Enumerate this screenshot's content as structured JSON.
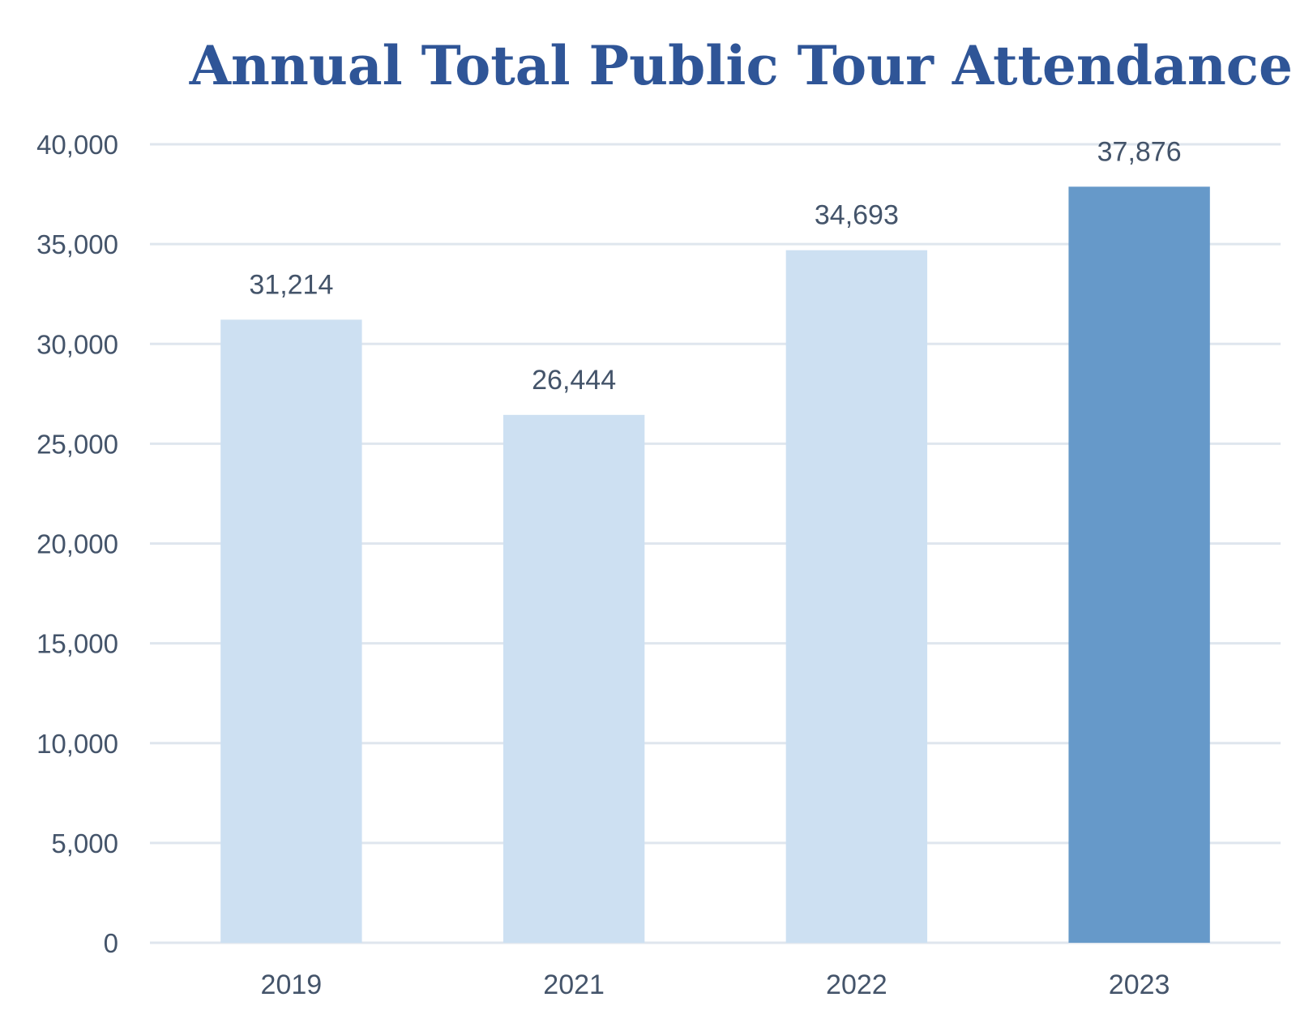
{
  "chart_data": {
    "type": "bar",
    "title": "Annual Total Public Tour Attendance",
    "categories": [
      "2019",
      "2021",
      "2022",
      "2023"
    ],
    "values": [
      31214,
      26444,
      34693,
      37876
    ],
    "data_labels": [
      "31,214",
      "26,444",
      "34,693",
      "37,876"
    ],
    "xlabel": "",
    "ylabel": "",
    "ylim": [
      0,
      40000
    ],
    "yticks": [
      0,
      5000,
      10000,
      15000,
      20000,
      25000,
      30000,
      35000,
      40000
    ],
    "ytick_labels": [
      "0",
      "5,000",
      "10,000",
      "15,000",
      "20,000",
      "25,000",
      "30,000",
      "35,000",
      "40,000"
    ],
    "grid": true,
    "legend": "none",
    "highlight_index": 3
  },
  "colors": {
    "title": "#2f5597",
    "bar": "#cde0f2",
    "bar_highlight": "#6699c9",
    "grid": "#dfe6ee",
    "text": "#44546a"
  }
}
